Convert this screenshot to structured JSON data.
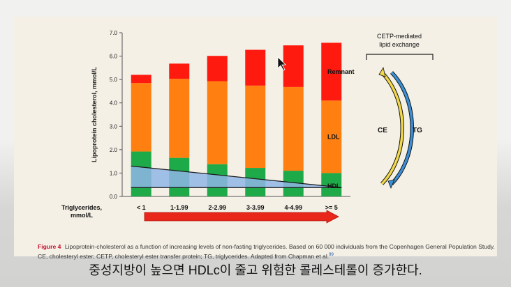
{
  "chart_data": {
    "type": "bar",
    "ylabel": "Lipoprotein cholesterol, mmol/L",
    "xlabel": "Triglycerides, mmol/L",
    "xlabel_lines": [
      "Triglycerides,",
      "mmol/L"
    ],
    "ylim": [
      0,
      7
    ],
    "yticks": [
      "0.0",
      "1.0",
      "2.0",
      "3.0",
      "4.0",
      "5.0",
      "6.0",
      "7.0"
    ],
    "categories": [
      "< 1",
      "1-1.99",
      "2-2.99",
      "3-3.99",
      "4-4.99",
      ">= 5"
    ],
    "series": [
      {
        "name": "HDL",
        "color": "#1faa4a",
        "values": [
          1.92,
          1.65,
          1.38,
          1.22,
          1.1,
          1.0
        ]
      },
      {
        "name": "LDL",
        "color": "#ff7f10",
        "values": [
          2.93,
          3.38,
          3.55,
          3.52,
          3.58,
          3.1
        ]
      },
      {
        "name": "Remnant",
        "color": "#ff1a10",
        "values": [
          0.35,
          0.65,
          1.08,
          1.53,
          1.78,
          2.47
        ]
      }
    ],
    "hdl_wedge": {
      "start": 1.3,
      "end": 0.38,
      "color": "#8fb6e6"
    },
    "arrow_color": "#e8261a"
  },
  "diagram": {
    "title_line1": "CETP-mediated",
    "title_line2": "lipid exchange",
    "ce_label": "CE",
    "tg_label": "TG",
    "ce_color": "#f2d84a",
    "tg_color": "#3b8fd6"
  },
  "caption": {
    "figure_label": "Figure 4",
    "text": "Lipoprotein-cholesterol as a function of increasing levels of non-fasting triglycerides. Based on 60 000 individuals from the Copenhagen General Population Study. CE, cholesteryl ester; CETP, cholesteryl ester transfer protein; TG, triglycerides. Adapted from Chapman et al.",
    "ref": "99"
  },
  "subtitle": "중성지방이 높으면 HDLc이 줄고 위험한 콜레스테롤이 증가한다."
}
